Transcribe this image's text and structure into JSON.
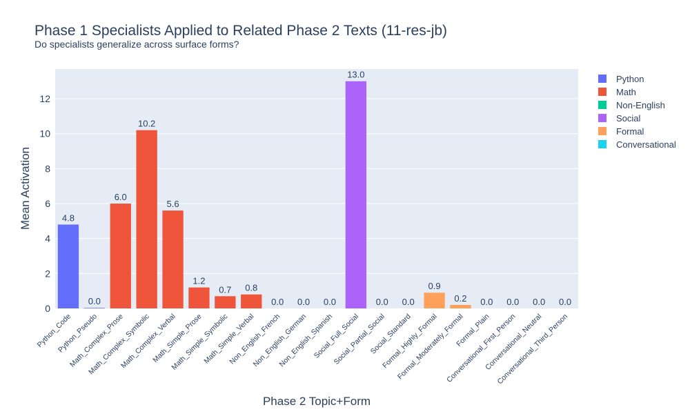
{
  "chart_data": {
    "type": "bar",
    "title": "Phase 1 Specialists Applied to Related Phase 2 Texts (11-res-jb)",
    "subtitle": "Do specialists generalize across surface forms?",
    "xlabel": "Phase 2 Topic+Form",
    "ylabel": "Mean Activation",
    "ylim": [
      0,
      13.7
    ],
    "yticks": [
      0,
      2,
      4,
      6,
      8,
      10,
      12
    ],
    "grid": true,
    "legend_position": "top-right outside",
    "categories": [
      "Python_Code",
      "Python_Pseudo",
      "Math_Complex_Prose",
      "Math_Complex_Symbolic",
      "Math_Complex_Verbal",
      "Math_Simple_Prose",
      "Math_Simple_Symbolic",
      "Math_Simple_Verbal",
      "Non_English_French",
      "Non_English_German",
      "Non_English_Spanish",
      "Social_Full_Social",
      "Social_Partial_Social",
      "Social_Standard",
      "Formal_Highly_Formal",
      "Formal_Moderately_Formal",
      "Formal_Plain",
      "Conversational_First_Person",
      "Conversational_Neutral",
      "Conversational_Third_Person"
    ],
    "values": [
      4.8,
      0.03,
      6.0,
      10.2,
      5.6,
      1.2,
      0.7,
      0.8,
      0.0,
      0.0,
      0.0,
      13.0,
      0.0,
      0.0,
      0.9,
      0.2,
      0.0,
      0.0,
      0.0,
      0.0
    ],
    "data_labels": [
      "4.8",
      "0.0",
      "6.0",
      "10.2",
      "5.6",
      "1.2",
      "0.7",
      "0.8",
      "0.0",
      "0.0",
      "0.0",
      "13.0",
      "0.0",
      "0.0",
      "0.9",
      "0.2",
      "0.0",
      "0.0",
      "0.0",
      "0.0"
    ],
    "groups": [
      "Python",
      "Python",
      "Math",
      "Math",
      "Math",
      "Math",
      "Math",
      "Math",
      "Non-English",
      "Non-English",
      "Non-English",
      "Social",
      "Social",
      "Social",
      "Formal",
      "Formal",
      "Formal",
      "Conversational",
      "Conversational",
      "Conversational"
    ],
    "legend": [
      {
        "name": "Python",
        "color": "#636efa"
      },
      {
        "name": "Math",
        "color": "#ef553b"
      },
      {
        "name": "Non-English",
        "color": "#00cc96"
      },
      {
        "name": "Social",
        "color": "#ab63fa"
      },
      {
        "name": "Formal",
        "color": "#ffa15a"
      },
      {
        "name": "Conversational",
        "color": "#19d3f3"
      }
    ]
  }
}
